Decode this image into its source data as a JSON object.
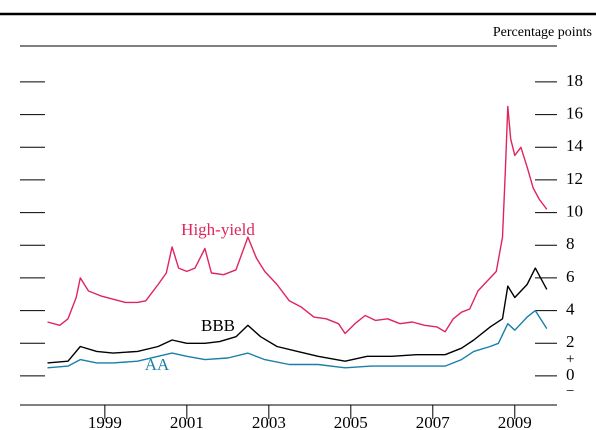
{
  "chart_data": {
    "type": "line",
    "y_axis_label": "Percentage points",
    "sign_labels": [
      "+",
      "−"
    ],
    "xlim": [
      1996.93,
      2010.03
    ],
    "xticks": [
      1999,
      2001,
      2003,
      2005,
      2007,
      2009
    ],
    "ylim": [
      -1.78,
      20.2
    ],
    "yticks": [
      0,
      2,
      4,
      6,
      8,
      10,
      12,
      14,
      16,
      18
    ],
    "series": [
      {
        "name": "High-yield",
        "color": "#e0245e",
        "x": [
          1997.6,
          1997.9,
          1998.1,
          1998.3,
          1998.4,
          1998.6,
          1998.9,
          1999.2,
          1999.5,
          1999.8,
          2000.0,
          2000.3,
          2000.5,
          2000.64,
          2000.8,
          2001.0,
          2001.2,
          2001.44,
          2001.6,
          2001.9,
          2002.2,
          2002.49,
          2002.7,
          2002.9,
          2003.2,
          2003.5,
          2003.8,
          2004.1,
          2004.4,
          2004.7,
          2004.86,
          2005.1,
          2005.35,
          2005.6,
          2005.9,
          2006.2,
          2006.5,
          2006.8,
          2007.1,
          2007.3,
          2007.5,
          2007.7,
          2007.9,
          2008.1,
          2008.4,
          2008.55,
          2008.7,
          2008.77,
          2008.83,
          2008.9,
          2009.0,
          2009.15,
          2009.3,
          2009.45,
          2009.6,
          2009.78
        ],
        "values": [
          3.3,
          3.1,
          3.5,
          4.8,
          6.0,
          5.2,
          4.9,
          4.7,
          4.5,
          4.5,
          4.6,
          5.6,
          6.3,
          7.9,
          6.6,
          6.4,
          6.6,
          7.8,
          6.3,
          6.2,
          6.5,
          8.5,
          7.2,
          6.4,
          5.6,
          4.6,
          4.2,
          3.6,
          3.5,
          3.2,
          2.6,
          3.2,
          3.7,
          3.4,
          3.5,
          3.2,
          3.3,
          3.1,
          3.0,
          2.7,
          3.5,
          3.9,
          4.1,
          5.2,
          6.0,
          6.4,
          8.5,
          12.5,
          16.5,
          14.5,
          13.5,
          14.0,
          12.8,
          11.5,
          10.8,
          10.2
        ]
      },
      {
        "name": "BBB",
        "color": "#000000",
        "x": [
          1997.6,
          1998.1,
          1998.4,
          1998.8,
          1999.2,
          1999.8,
          2000.3,
          2000.64,
          2001.0,
          2001.44,
          2001.8,
          2002.2,
          2002.49,
          2002.8,
          2003.2,
          2003.7,
          2004.2,
          2004.86,
          2005.4,
          2006.0,
          2006.6,
          2007.3,
          2007.7,
          2008.0,
          2008.4,
          2008.7,
          2008.83,
          2009.0,
          2009.3,
          2009.5,
          2009.78
        ],
        "values": [
          0.8,
          0.9,
          1.8,
          1.5,
          1.4,
          1.5,
          1.8,
          2.2,
          2.0,
          2.0,
          2.1,
          2.4,
          3.1,
          2.4,
          1.8,
          1.5,
          1.2,
          0.9,
          1.2,
          1.2,
          1.3,
          1.3,
          1.7,
          2.2,
          3.0,
          3.5,
          5.5,
          4.8,
          5.6,
          6.6,
          5.3
        ]
      },
      {
        "name": "AA",
        "color": "#1a7fa8",
        "x": [
          1997.6,
          1998.1,
          1998.4,
          1998.8,
          1999.2,
          1999.8,
          2000.3,
          2000.64,
          2001.0,
          2001.44,
          2002.0,
          2002.49,
          2002.9,
          2003.5,
          2004.2,
          2004.86,
          2005.5,
          2006.3,
          2007.3,
          2007.7,
          2008.0,
          2008.4,
          2008.6,
          2008.83,
          2009.0,
          2009.3,
          2009.5,
          2009.78
        ],
        "values": [
          0.5,
          0.6,
          1.0,
          0.8,
          0.8,
          0.9,
          1.2,
          1.4,
          1.2,
          1.0,
          1.1,
          1.4,
          1.0,
          0.7,
          0.7,
          0.5,
          0.6,
          0.6,
          0.6,
          1.0,
          1.5,
          1.8,
          2.0,
          3.2,
          2.8,
          3.6,
          4.0,
          2.9
        ]
      }
    ]
  }
}
